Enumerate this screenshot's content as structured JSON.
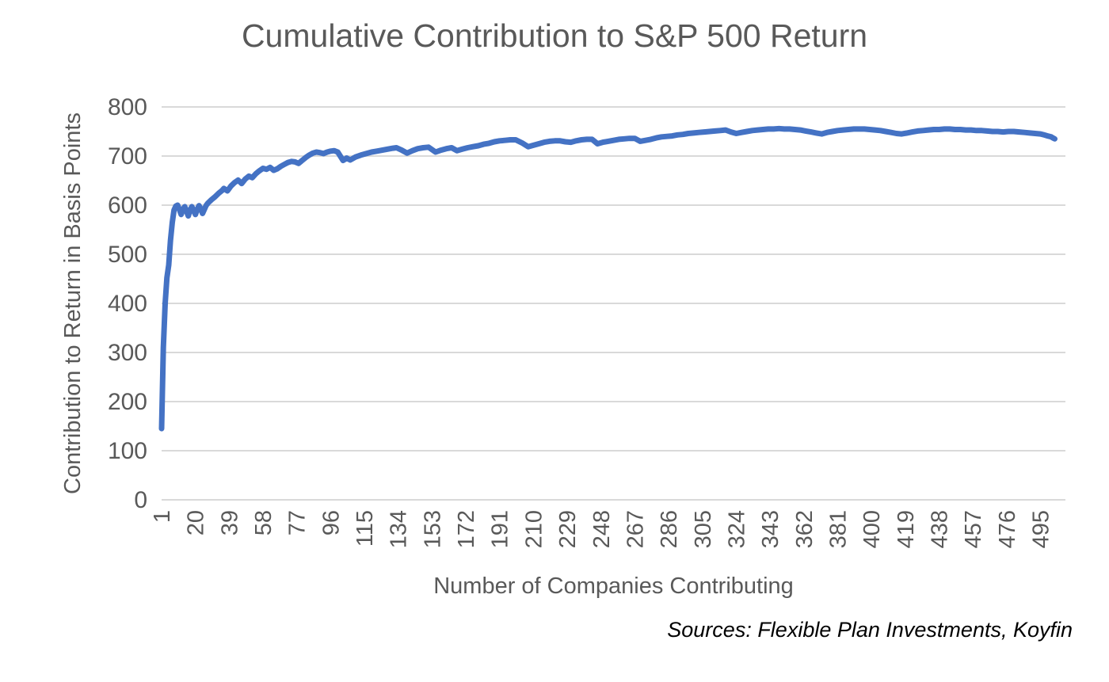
{
  "page": {
    "background": "#FFFFFF"
  },
  "footer": {
    "source_note": "Sources: Flexible Plan Investments, Koyfin"
  },
  "colors": {
    "line": "#4472C4",
    "gridline": "#D9D9D9",
    "axis_text": "#595959",
    "title_text": "#595959",
    "source_text": "#000000",
    "background": "#FFFFFF"
  },
  "chart_data": {
    "type": "line",
    "title": "Cumulative Contribution to S&P 500 Return",
    "xlabel": "Number of Companies Contributing",
    "ylabel": "Contribution to Return in Basis Points",
    "xlim": [
      1,
      503
    ],
    "ylim": [
      0,
      800
    ],
    "x_ticks": [
      1,
      20,
      39,
      58,
      77,
      96,
      115,
      134,
      153,
      172,
      191,
      210,
      229,
      248,
      267,
      286,
      305,
      324,
      343,
      362,
      381,
      400,
      419,
      438,
      457,
      476,
      495
    ],
    "y_ticks": [
      0,
      100,
      200,
      300,
      400,
      500,
      600,
      700,
      800
    ],
    "grid": "horizontal",
    "legend": "none",
    "series": [
      {
        "name": "Cumulative contribution to return (basis points)",
        "color": "#4472C4",
        "points": [
          [
            1,
            145
          ],
          [
            2,
            310
          ],
          [
            3,
            400
          ],
          [
            4,
            452
          ],
          [
            5,
            478
          ],
          [
            6,
            528
          ],
          [
            7,
            565
          ],
          [
            8,
            590
          ],
          [
            9,
            598
          ],
          [
            10,
            600
          ],
          [
            11,
            591
          ],
          [
            12,
            581
          ],
          [
            13,
            592
          ],
          [
            14,
            597
          ],
          [
            15,
            588
          ],
          [
            16,
            578
          ],
          [
            17,
            590
          ],
          [
            18,
            597
          ],
          [
            19,
            589
          ],
          [
            20,
            581
          ],
          [
            21,
            591
          ],
          [
            22,
            599
          ],
          [
            23,
            593
          ],
          [
            24,
            583
          ],
          [
            25,
            591
          ],
          [
            26,
            599
          ],
          [
            27,
            604
          ],
          [
            29,
            611
          ],
          [
            31,
            617
          ],
          [
            33,
            624
          ],
          [
            35,
            630
          ],
          [
            36,
            634
          ],
          [
            38,
            629
          ],
          [
            40,
            639
          ],
          [
            42,
            646
          ],
          [
            44,
            651
          ],
          [
            46,
            644
          ],
          [
            48,
            653
          ],
          [
            50,
            659
          ],
          [
            52,
            656
          ],
          [
            54,
            664
          ],
          [
            56,
            670
          ],
          [
            58,
            675
          ],
          [
            60,
            673
          ],
          [
            62,
            677
          ],
          [
            64,
            671
          ],
          [
            66,
            674
          ],
          [
            68,
            679
          ],
          [
            70,
            683
          ],
          [
            72,
            687
          ],
          [
            74,
            689
          ],
          [
            76,
            688
          ],
          [
            78,
            685
          ],
          [
            80,
            691
          ],
          [
            82,
            697
          ],
          [
            84,
            702
          ],
          [
            86,
            706
          ],
          [
            88,
            708
          ],
          [
            90,
            707
          ],
          [
            92,
            705
          ],
          [
            94,
            708
          ],
          [
            96,
            710
          ],
          [
            98,
            711
          ],
          [
            100,
            708
          ],
          [
            103,
            691
          ],
          [
            105,
            696
          ],
          [
            107,
            692
          ],
          [
            110,
            698
          ],
          [
            113,
            702
          ],
          [
            116,
            705
          ],
          [
            119,
            708
          ],
          [
            122,
            710
          ],
          [
            125,
            712
          ],
          [
            128,
            714
          ],
          [
            131,
            716
          ],
          [
            133,
            717
          ],
          [
            136,
            712
          ],
          [
            139,
            706
          ],
          [
            142,
            711
          ],
          [
            145,
            715
          ],
          [
            148,
            717
          ],
          [
            151,
            718
          ],
          [
            155,
            708
          ],
          [
            158,
            712
          ],
          [
            161,
            715
          ],
          [
            164,
            717
          ],
          [
            167,
            711
          ],
          [
            170,
            714
          ],
          [
            173,
            717
          ],
          [
            176,
            719
          ],
          [
            179,
            721
          ],
          [
            182,
            724
          ],
          [
            185,
            726
          ],
          [
            188,
            729
          ],
          [
            191,
            731
          ],
          [
            194,
            732
          ],
          [
            197,
            733
          ],
          [
            200,
            733
          ],
          [
            204,
            726
          ],
          [
            207,
            719
          ],
          [
            210,
            722
          ],
          [
            213,
            725
          ],
          [
            216,
            728
          ],
          [
            219,
            730
          ],
          [
            222,
            731
          ],
          [
            225,
            731
          ],
          [
            228,
            729
          ],
          [
            231,
            728
          ],
          [
            234,
            731
          ],
          [
            237,
            733
          ],
          [
            240,
            734
          ],
          [
            243,
            734
          ],
          [
            246,
            725
          ],
          [
            249,
            728
          ],
          [
            252,
            730
          ],
          [
            255,
            732
          ],
          [
            258,
            734
          ],
          [
            261,
            735
          ],
          [
            264,
            736
          ],
          [
            267,
            736
          ],
          [
            270,
            730
          ],
          [
            273,
            732
          ],
          [
            276,
            734
          ],
          [
            279,
            737
          ],
          [
            282,
            739
          ],
          [
            285,
            740
          ],
          [
            288,
            741
          ],
          [
            291,
            743
          ],
          [
            294,
            744
          ],
          [
            297,
            746
          ],
          [
            300,
            747
          ],
          [
            303,
            748
          ],
          [
            306,
            749
          ],
          [
            309,
            750
          ],
          [
            312,
            751
          ],
          [
            315,
            752
          ],
          [
            318,
            753
          ],
          [
            321,
            749
          ],
          [
            324,
            746
          ],
          [
            327,
            748
          ],
          [
            330,
            750
          ],
          [
            333,
            752
          ],
          [
            336,
            753
          ],
          [
            339,
            754
          ],
          [
            342,
            755
          ],
          [
            345,
            755
          ],
          [
            348,
            756
          ],
          [
            351,
            755
          ],
          [
            354,
            755
          ],
          [
            357,
            754
          ],
          [
            360,
            753
          ],
          [
            363,
            751
          ],
          [
            366,
            749
          ],
          [
            369,
            747
          ],
          [
            372,
            745
          ],
          [
            375,
            748
          ],
          [
            378,
            750
          ],
          [
            381,
            752
          ],
          [
            384,
            753
          ],
          [
            387,
            754
          ],
          [
            390,
            755
          ],
          [
            393,
            755
          ],
          [
            396,
            755
          ],
          [
            399,
            754
          ],
          [
            402,
            753
          ],
          [
            405,
            752
          ],
          [
            408,
            750
          ],
          [
            411,
            748
          ],
          [
            414,
            746
          ],
          [
            417,
            745
          ],
          [
            420,
            747
          ],
          [
            423,
            749
          ],
          [
            426,
            751
          ],
          [
            429,
            752
          ],
          [
            432,
            753
          ],
          [
            435,
            754
          ],
          [
            438,
            754
          ],
          [
            441,
            755
          ],
          [
            444,
            755
          ],
          [
            447,
            754
          ],
          [
            450,
            754
          ],
          [
            453,
            753
          ],
          [
            456,
            753
          ],
          [
            459,
            752
          ],
          [
            462,
            752
          ],
          [
            465,
            751
          ],
          [
            468,
            750
          ],
          [
            471,
            750
          ],
          [
            474,
            749
          ],
          [
            477,
            750
          ],
          [
            480,
            750
          ],
          [
            483,
            749
          ],
          [
            486,
            748
          ],
          [
            489,
            747
          ],
          [
            492,
            746
          ],
          [
            495,
            745
          ],
          [
            497,
            743
          ],
          [
            499,
            741
          ],
          [
            501,
            739
          ],
          [
            502,
            737
          ],
          [
            503,
            735
          ]
        ]
      }
    ]
  }
}
